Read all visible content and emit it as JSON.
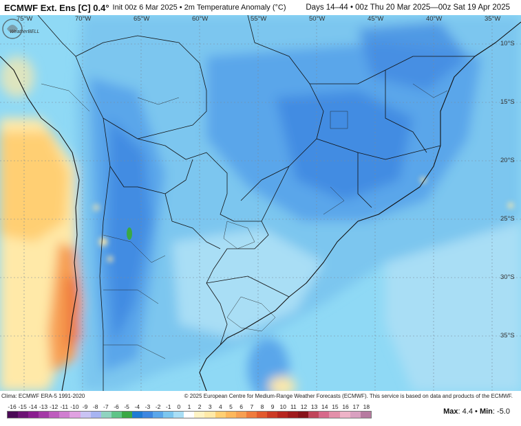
{
  "header": {
    "title": "ECMWF Ext. Ens [C] 0.4°",
    "init": "Init 00z 6 Mar 2025 • 2m Temperature Anomaly (°C)",
    "range": "Days 14–44 • 00z Thu 20 Mar 2025—00z Sat 19 Apr 2025"
  },
  "map": {
    "lon_labels": [
      "75°W",
      "70°W",
      "65°W",
      "60°W",
      "55°W",
      "50°W",
      "45°W",
      "40°W",
      "35°W"
    ],
    "lat_labels": [
      "10°S",
      "15°S",
      "20°S",
      "25°S",
      "30°S",
      "35°S"
    ],
    "logo_text": "WeatherBELL",
    "colors": {
      "ocean_base": "#8fd9f5",
      "cold_light": "#a9def5",
      "cold_mid": "#7cc6ef",
      "cold_deep": "#5aa6ea",
      "cold_strong": "#3d86e0",
      "warm_light": "#ffe9a8",
      "warm_mid": "#ffcf73",
      "warm_orange": "#f79f52",
      "warm_strong": "#ef7b3d",
      "green_spot": "#3aa845",
      "borders": "#111111"
    }
  },
  "credits": {
    "left": "Clima: ECMWF ERA-5 1991-2020",
    "right": "© 2025 European Centre for Medium-Range Weather Forecasts (ECMWF). This service is based on data and products of the ECMWF."
  },
  "colorbar": {
    "labels": [
      "-16",
      "-15",
      "-14",
      "-13",
      "-12",
      "-11",
      "-10",
      "-9",
      "-8",
      "-7",
      "-6",
      "-5",
      "-4",
      "-3",
      "-2",
      "-1",
      "0",
      "1",
      "2",
      "3",
      "4",
      "5",
      "6",
      "7",
      "8",
      "9",
      "10",
      "11",
      "12",
      "13",
      "14",
      "15",
      "16",
      "17",
      "18"
    ],
    "colors": [
      "#4a0a56",
      "#6c1374",
      "#8a1d8f",
      "#a43aa6",
      "#be5cbd",
      "#d07ed0",
      "#e0a1e1",
      "#c9c3f4",
      "#a7b4f2",
      "#8fd3c0",
      "#5fc488",
      "#3aa845",
      "#1e7ad3",
      "#3d86e0",
      "#5aa6ea",
      "#7cc6ef",
      "#a9def5",
      "#ffffff",
      "#fff3c4",
      "#ffe9a8",
      "#ffcf73",
      "#fdb75c",
      "#f79f52",
      "#ef7b3d",
      "#e25a2e",
      "#cc3b25",
      "#b7261f",
      "#9f1a1c",
      "#861219",
      "#c0455a",
      "#d7698a",
      "#e38fa9",
      "#eeb3c7",
      "#d9a0c0",
      "#b77aa0"
    ]
  },
  "stats": {
    "max_label": "Max",
    "max_value": "4.4",
    "min_label": "Min",
    "min_value": "-5.0",
    "separator": "•"
  }
}
